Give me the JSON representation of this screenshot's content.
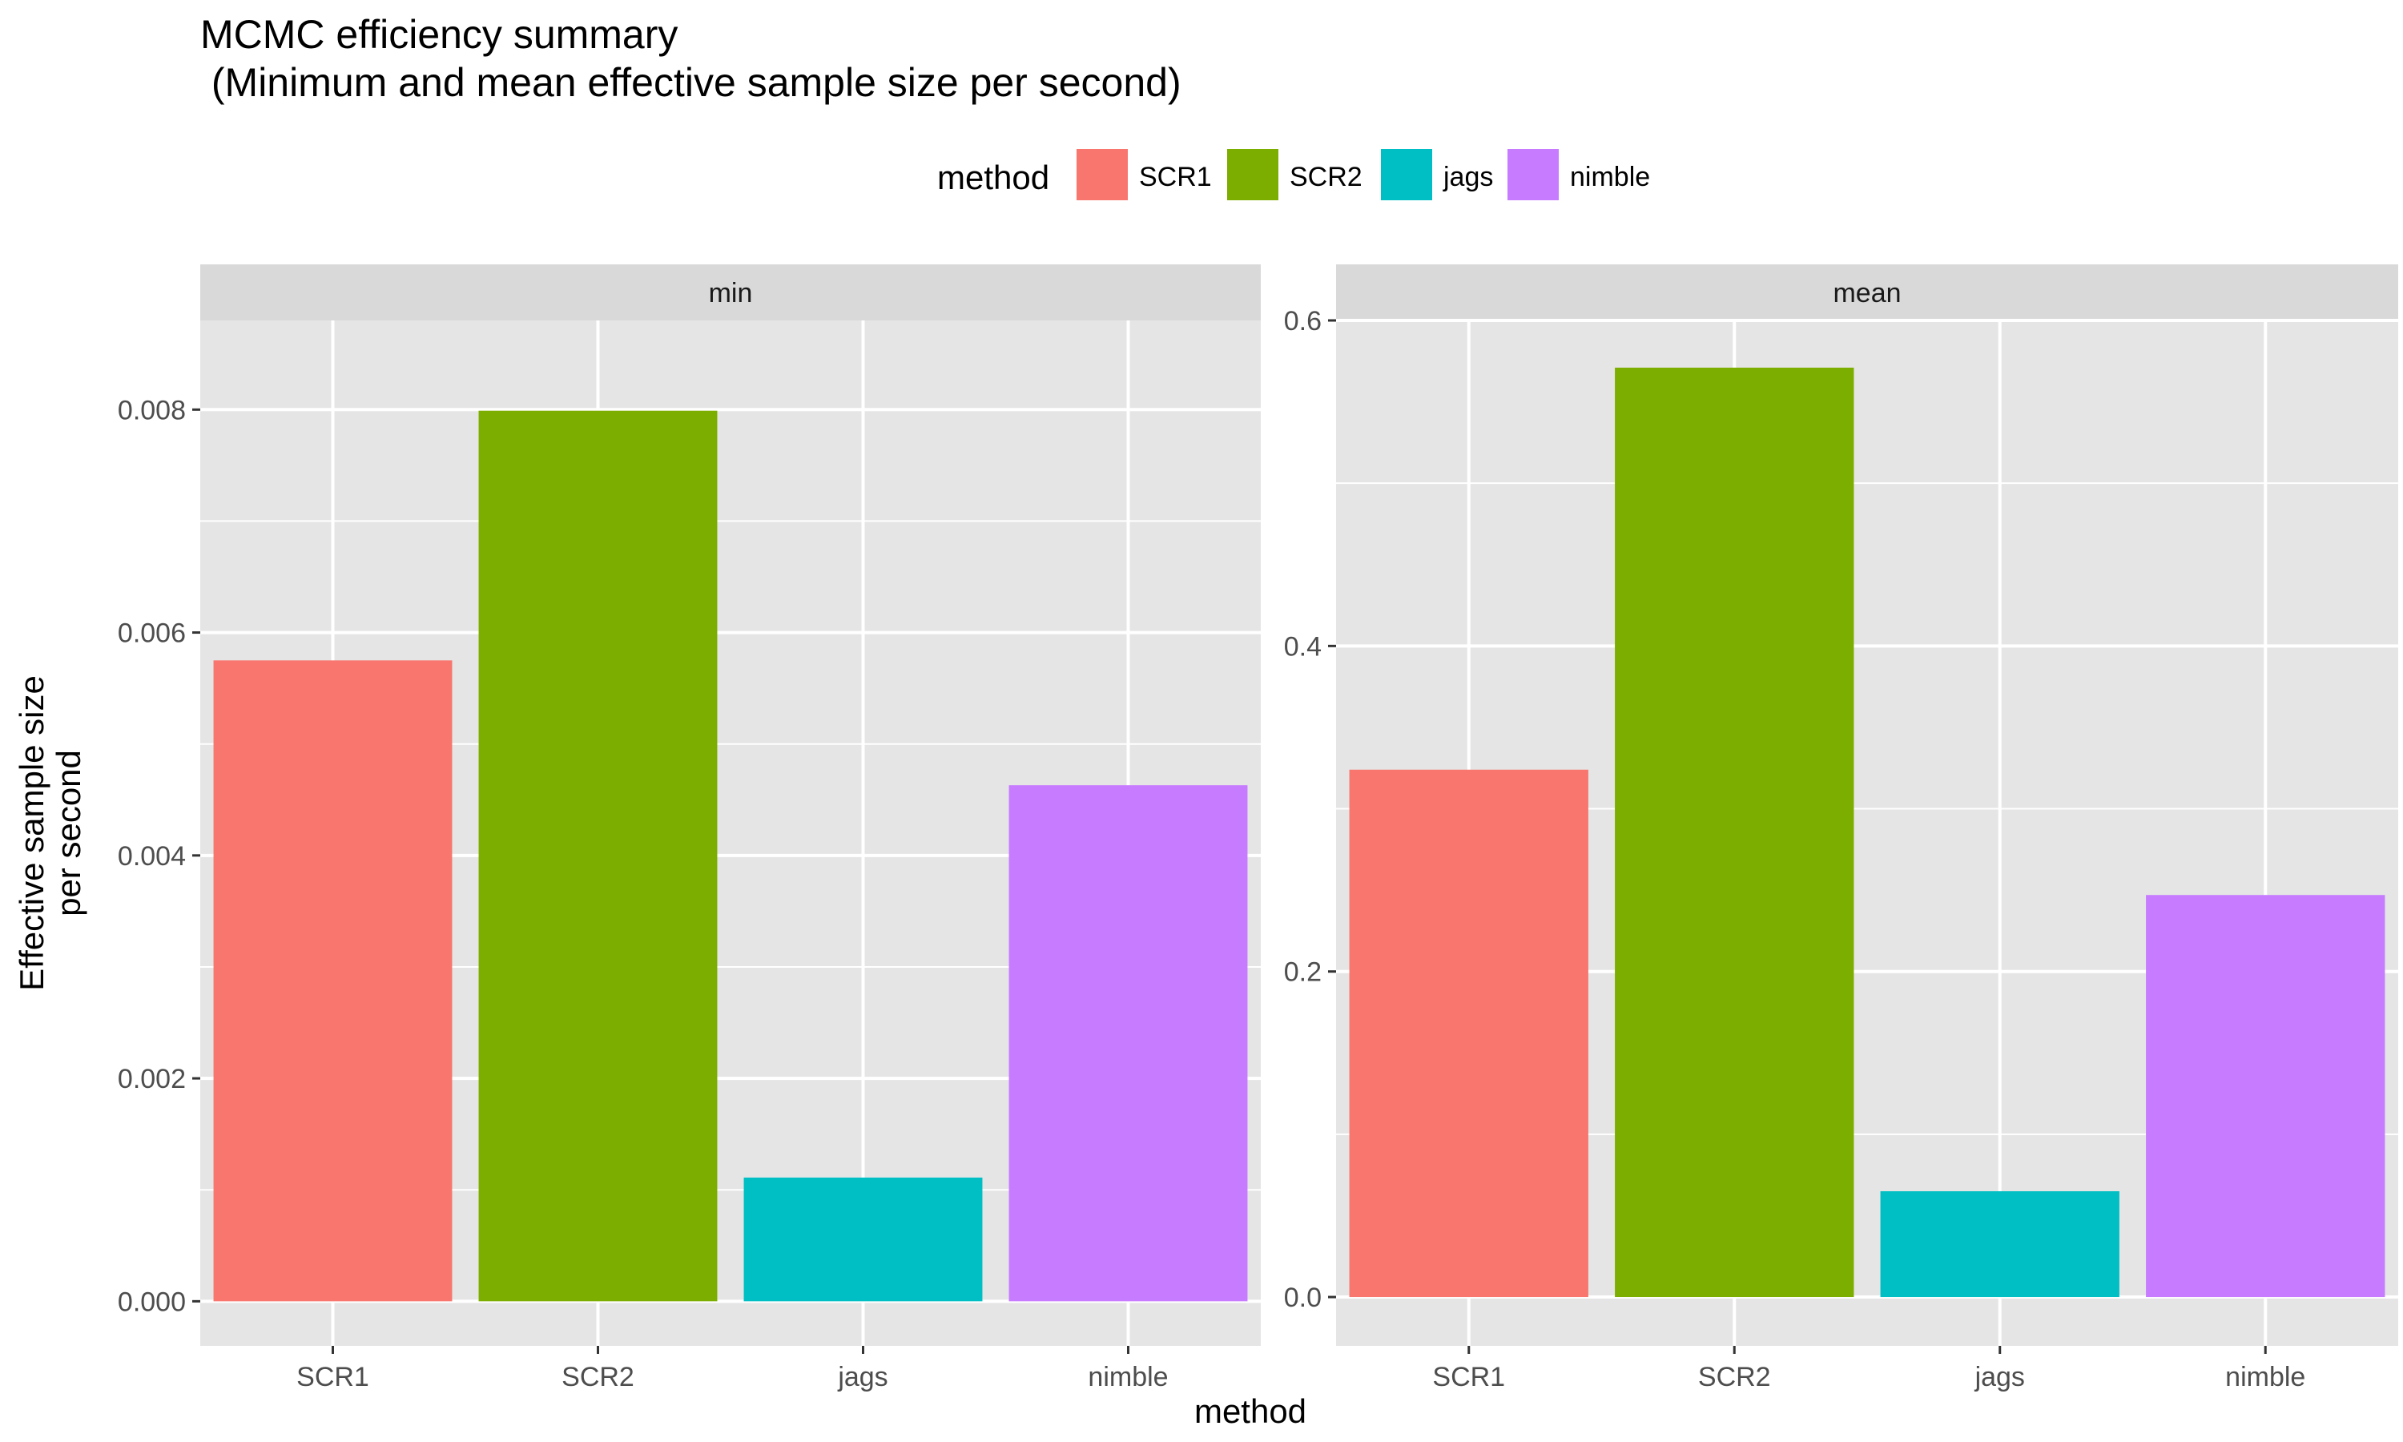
{
  "chart_data": {
    "type": "bar",
    "title": "MCMC efficiency summary",
    "subtitle": " (Minimum and mean effective sample size per second)",
    "xlabel": "method",
    "ylabel": "Effective sample size per second",
    "ylabel_lines": [
      "Effective sample size",
      "per second"
    ],
    "categories": [
      "SCR1",
      "SCR2",
      "jags",
      "nimble"
    ],
    "legend": {
      "title": "method",
      "position": "top",
      "entries": [
        "SCR1",
        "SCR2",
        "jags",
        "nimble"
      ]
    },
    "colors": [
      "#F8766D",
      "#7CAE00",
      "#00BFC4",
      "#C77CFF"
    ],
    "panel_background": "#E5E5E5",
    "strip_background": "#D9D9D9",
    "grid": true,
    "facets": [
      {
        "label": "min",
        "values": [
          0.00575,
          0.00799,
          0.00111,
          0.00463
        ],
        "ylim": [
          -0.0004,
          0.0088
        ],
        "yticks": [
          0,
          0.002,
          0.004,
          0.006,
          0.008
        ],
        "yticklabels": [
          "0.000",
          "0.002",
          "0.004",
          "0.006",
          "0.008"
        ]
      },
      {
        "label": "mean",
        "values": [
          0.324,
          0.571,
          0.065,
          0.247
        ],
        "ylim": [
          -0.03,
          0.6
        ],
        "yticks": [
          0,
          0.2,
          0.4,
          0.6
        ],
        "yticklabels": [
          "0.0",
          "0.2",
          "0.4",
          "0.6"
        ]
      }
    ]
  }
}
